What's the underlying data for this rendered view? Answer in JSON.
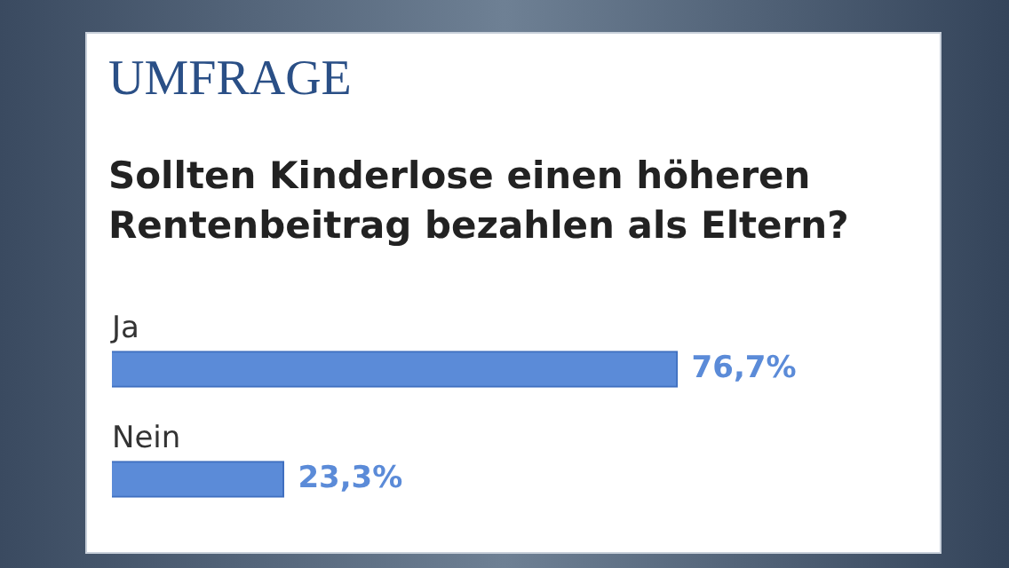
{
  "chart_data": {
    "type": "bar",
    "orientation": "horizontal",
    "title": "UMFRAGE",
    "subtitle": "Sollten Kinderlose einen höheren Rentenbeitrag bezahlen als Eltern?",
    "categories": [
      "Ja",
      "Nein"
    ],
    "values": [
      76.7,
      23.3
    ],
    "value_labels": [
      "76,7%",
      "23,3%"
    ],
    "color": "#5b8bd8",
    "tick_labels": false
  }
}
